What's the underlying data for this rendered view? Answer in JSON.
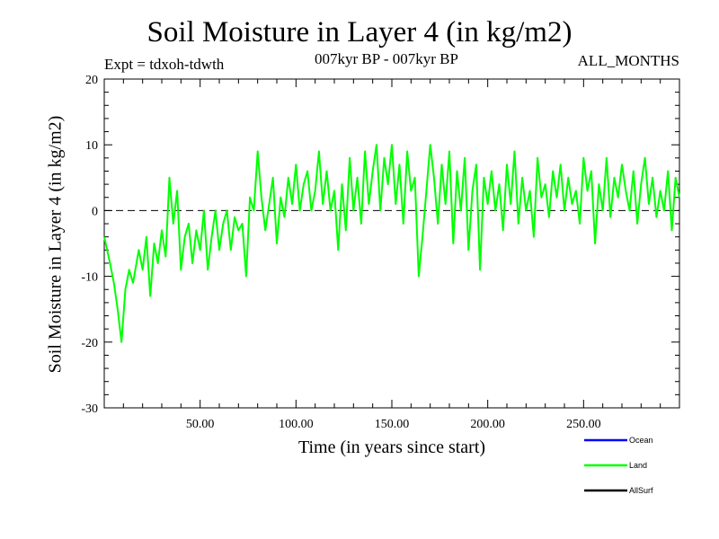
{
  "chart_data": {
    "type": "line",
    "title": "Soil Moisture in Layer 4 (in kg/m2)",
    "subtitle_left": "Expt = tdxoh-tdwth",
    "subtitle_center": "007kyr BP - 007kyr BP",
    "subtitle_right": "ALL_MONTHS",
    "xlabel": "Time (in years since start)",
    "ylabel": "Soil Moisture in Layer 4 (in kg/m2)",
    "xlim": [
      0,
      300
    ],
    "ylim": [
      -30,
      20
    ],
    "x_ticks": [
      50,
      100,
      150,
      200,
      250
    ],
    "x_tick_labels": [
      "50.00",
      "100.00",
      "150.00",
      "200.00",
      "250.00"
    ],
    "y_ticks": [
      -30,
      -20,
      -10,
      0,
      10,
      20
    ],
    "y_tick_labels": [
      "-30",
      "-20",
      "-10",
      "0",
      "10",
      "20"
    ],
    "reference_line": 0,
    "legend_position": "bottom-right",
    "series": [
      {
        "name": "Ocean",
        "color": "#0000ff",
        "x": [],
        "y": []
      },
      {
        "name": "Land",
        "color": "#00ff00",
        "x": [
          0,
          3,
          5,
          7,
          9,
          11,
          13,
          15,
          18,
          20,
          22,
          24,
          26,
          28,
          30,
          32,
          34,
          36,
          38,
          40,
          42,
          44,
          46,
          48,
          50,
          52,
          54,
          56,
          58,
          60,
          62,
          64,
          66,
          68,
          70,
          72,
          74,
          76,
          78,
          80,
          82,
          84,
          86,
          88,
          90,
          92,
          94,
          96,
          98,
          100,
          102,
          104,
          106,
          108,
          110,
          112,
          114,
          116,
          118,
          120,
          122,
          124,
          126,
          128,
          130,
          132,
          134,
          136,
          138,
          140,
          142,
          144,
          146,
          148,
          150,
          152,
          154,
          156,
          158,
          160,
          162,
          164,
          166,
          168,
          170,
          172,
          174,
          176,
          178,
          180,
          182,
          184,
          186,
          188,
          190,
          192,
          194,
          196,
          198,
          200,
          202,
          204,
          206,
          208,
          210,
          212,
          214,
          216,
          218,
          220,
          222,
          224,
          226,
          228,
          230,
          232,
          234,
          236,
          238,
          240,
          242,
          244,
          246,
          248,
          250,
          252,
          254,
          256,
          258,
          260,
          262,
          264,
          266,
          268,
          270,
          272,
          274,
          276,
          278,
          280,
          282,
          284,
          286,
          288,
          290,
          292,
          294,
          296,
          298,
          300
        ],
        "y": [
          -4,
          -8,
          -11,
          -15,
          -20,
          -12,
          -9,
          -11,
          -6,
          -9,
          -4,
          -13,
          -5,
          -8,
          -3,
          -7,
          5,
          -2,
          3,
          -9,
          -4,
          -2,
          -8,
          -3,
          -6,
          0,
          -9,
          -4,
          0,
          -6,
          -2,
          0,
          -6,
          -1,
          -3,
          -2,
          -10,
          2,
          0,
          9,
          2,
          -3,
          1,
          5,
          -5,
          2,
          -1,
          5,
          1,
          7,
          0,
          4,
          6,
          0,
          3,
          9,
          1,
          6,
          0,
          3,
          -6,
          4,
          -3,
          8,
          0,
          5,
          -2,
          9,
          1,
          6,
          10,
          0,
          8,
          4,
          10,
          1,
          7,
          -2,
          9,
          3,
          5,
          -10,
          -4,
          3,
          10,
          5,
          -2,
          7,
          1,
          9,
          -5,
          6,
          0,
          8,
          -6,
          3,
          7,
          -9,
          5,
          1,
          6,
          0,
          4,
          -3,
          7,
          1,
          9,
          -2,
          5,
          0,
          3,
          -4,
          8,
          2,
          4,
          -1,
          6,
          2,
          7,
          0,
          5,
          1,
          3,
          -2,
          8,
          3,
          6,
          -5,
          4,
          0,
          8,
          -1,
          5,
          2,
          7,
          3,
          0,
          6,
          -2,
          4,
          8,
          1,
          5,
          -1,
          3,
          0,
          6,
          -3,
          5,
          2
        ]
      },
      {
        "name": "AllSurf",
        "color": "#000000",
        "x": [],
        "y": []
      }
    ]
  }
}
